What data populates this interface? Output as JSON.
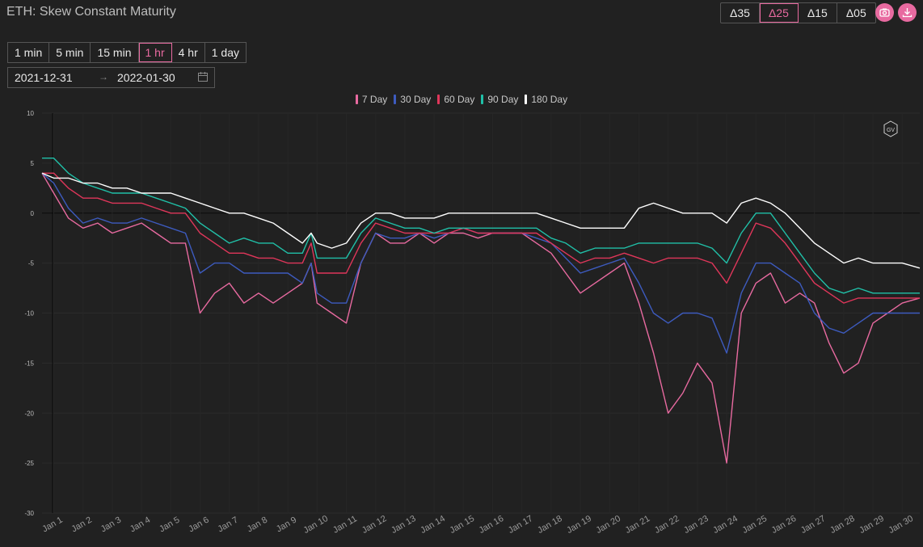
{
  "header": {
    "title": "ETH: Skew Constant Maturity"
  },
  "deltas": [
    {
      "label": "Δ35",
      "active": false
    },
    {
      "label": "Δ25",
      "active": true
    },
    {
      "label": "Δ15",
      "active": false
    },
    {
      "label": "Δ05",
      "active": false
    }
  ],
  "icons": {
    "camera": "camera-icon",
    "download": "download-icon",
    "calendar": "calendar-icon"
  },
  "timeframes": [
    {
      "label": "1 min",
      "active": false
    },
    {
      "label": "5 min",
      "active": false
    },
    {
      "label": "15 min",
      "active": false
    },
    {
      "label": "1 hr",
      "active": true
    },
    {
      "label": "4 hr",
      "active": false
    },
    {
      "label": "1 day",
      "active": false
    }
  ],
  "date_range": {
    "start": "2021-12-31",
    "separator": "→",
    "end": "2022-01-30"
  },
  "watermark": "GV",
  "chart_data": {
    "type": "line",
    "ylim": [
      -30,
      10
    ],
    "yticks": [
      10,
      5,
      0,
      -5,
      -10,
      -15,
      -20,
      -25,
      -30
    ],
    "xlim": [
      0.6,
      30.6
    ],
    "x_tick_labels": [
      "Jan 1",
      "Jan 2",
      "Jan 3",
      "Jan 4",
      "Jan 5",
      "Jan 6",
      "Jan 7",
      "Jan 8",
      "Jan 9",
      "Jan 10",
      "Jan 11",
      "Jan 12",
      "Jan 13",
      "Jan 14",
      "Jan 15",
      "Jan 16",
      "Jan 17",
      "Jan 18",
      "Jan 19",
      "Jan 20",
      "Jan 21",
      "Jan 22",
      "Jan 23",
      "Jan 24",
      "Jan 25",
      "Jan 26",
      "Jan 27",
      "Jan 28",
      "Jan 29",
      "Jan 30"
    ],
    "x": [
      0.6,
      1.0,
      1.5,
      2.0,
      2.5,
      3.0,
      3.5,
      4.0,
      4.5,
      5.0,
      5.5,
      6.0,
      6.5,
      7.0,
      7.5,
      8.0,
      8.5,
      9.0,
      9.5,
      9.8,
      10.0,
      10.5,
      11.0,
      11.5,
      12.0,
      12.5,
      13.0,
      13.5,
      14.0,
      14.5,
      15.0,
      15.5,
      16.0,
      16.5,
      17.0,
      17.5,
      18.0,
      18.5,
      19.0,
      19.5,
      20.0,
      20.5,
      21.0,
      21.5,
      22.0,
      22.5,
      23.0,
      23.5,
      24.0,
      24.5,
      25.0,
      25.5,
      26.0,
      26.5,
      27.0,
      27.5,
      28.0,
      28.5,
      29.0,
      29.5,
      30.0,
      30.6
    ],
    "series": [
      {
        "name": "7 Day",
        "color": "#e86aa0",
        "values": [
          4,
          2,
          -0.5,
          -1.5,
          -1,
          -2,
          -1.5,
          -1,
          -2,
          -3,
          -3,
          -10,
          -8,
          -7,
          -9,
          -8,
          -9,
          -8,
          -7,
          -5,
          -9,
          -10,
          -11,
          -5,
          -2,
          -3,
          -3,
          -2,
          -3,
          -2,
          -2,
          -2.5,
          -2,
          -2,
          -2,
          -3,
          -4,
          -6,
          -8,
          -7,
          -6,
          -5,
          -9,
          -14,
          -20,
          -18,
          -15,
          -17,
          -25,
          -10,
          -7,
          -6,
          -9,
          -8,
          -9,
          -13,
          -16,
          -15,
          -11,
          -10,
          -9,
          -8.5
        ]
      },
      {
        "name": "30 Day",
        "color": "#3d5bbf",
        "values": [
          4,
          3,
          0.5,
          -1,
          -0.5,
          -1,
          -1,
          -0.5,
          -1,
          -1.5,
          -2,
          -6,
          -5,
          -5,
          -6,
          -6,
          -6,
          -6,
          -7,
          -5,
          -8,
          -9,
          -9,
          -5,
          -2,
          -2.5,
          -2.5,
          -2,
          -2.5,
          -2,
          -1.5,
          -2,
          -2,
          -2,
          -2,
          -2.5,
          -3,
          -4.5,
          -6,
          -5.5,
          -5,
          -4.5,
          -7,
          -10,
          -11,
          -10,
          -10,
          -10.5,
          -14,
          -8,
          -5,
          -5,
          -6,
          -7,
          -10,
          -11.5,
          -12,
          -11,
          -10,
          -10,
          -10,
          -10
        ]
      },
      {
        "name": "60 Day",
        "color": "#e0365a",
        "values": [
          4,
          4,
          2.5,
          1.5,
          1.5,
          1,
          1,
          1,
          0.5,
          0,
          0,
          -2,
          -3,
          -4,
          -4,
          -4.5,
          -4.5,
          -5,
          -5,
          -3,
          -6,
          -6,
          -6,
          -3,
          -1,
          -1.5,
          -2,
          -2,
          -2,
          -2,
          -1.5,
          -2,
          -2,
          -2,
          -2,
          -2,
          -3,
          -4,
          -5,
          -4.5,
          -4.5,
          -4,
          -4.5,
          -5,
          -4.5,
          -4.5,
          -4.5,
          -5,
          -7,
          -4,
          -1,
          -1.5,
          -3,
          -5,
          -7,
          -8,
          -9,
          -8.5,
          -8.5,
          -8.5,
          -8.5,
          -8.5
        ]
      },
      {
        "name": "90 Day",
        "color": "#20c0a8",
        "values": [
          5.5,
          5.5,
          4,
          3,
          2.5,
          2,
          2,
          2,
          1.5,
          1,
          0.5,
          -1,
          -2,
          -3,
          -2.5,
          -3,
          -3,
          -4,
          -4,
          -2,
          -4.5,
          -4.5,
          -4.5,
          -2,
          -0.5,
          -1,
          -1.5,
          -1.5,
          -2,
          -1.5,
          -1.5,
          -1.5,
          -1.5,
          -1.5,
          -1.5,
          -1.5,
          -2.5,
          -3,
          -4,
          -3.5,
          -3.5,
          -3.5,
          -3,
          -3,
          -3,
          -3,
          -3,
          -3.5,
          -5,
          -2,
          0,
          0,
          -2,
          -4,
          -6,
          -7.5,
          -8,
          -7.5,
          -8,
          -8,
          -8,
          -8
        ]
      },
      {
        "name": "180 Day",
        "color": "#ffffff",
        "values": [
          4,
          3.5,
          3.5,
          3,
          3,
          2.5,
          2.5,
          2,
          2,
          2,
          1.5,
          1,
          0.5,
          0,
          0,
          -0.5,
          -1,
          -2,
          -3,
          -2,
          -3,
          -3.5,
          -3,
          -1,
          0,
          0,
          -0.5,
          -0.5,
          -0.5,
          0,
          0,
          0,
          0,
          0,
          0,
          0,
          -0.5,
          -1,
          -1.5,
          -1.5,
          -1.5,
          -1.5,
          0.5,
          1,
          0.5,
          0,
          0,
          0,
          -1,
          1,
          1.5,
          1,
          0,
          -1.5,
          -3,
          -4,
          -5,
          -4.5,
          -5,
          -5,
          -5,
          -5.5
        ]
      }
    ]
  }
}
